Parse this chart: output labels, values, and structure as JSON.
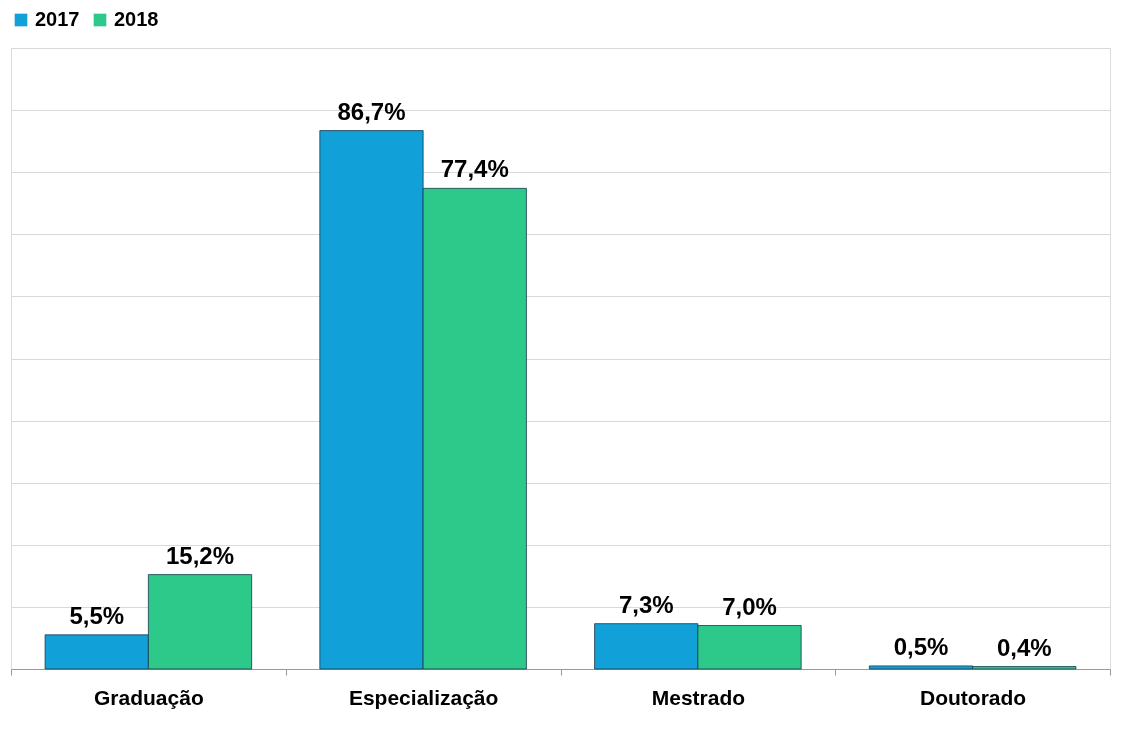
{
  "chart_data": {
    "type": "bar",
    "categories": [
      "Graduação",
      "Especialização",
      "Mestrado",
      "Doutorado"
    ],
    "series": [
      {
        "name": "2017",
        "color": "#12a0d8",
        "values": [
          5.5,
          86.7,
          7.3,
          0.5
        ],
        "value_labels": [
          "5,5%",
          "86,7%",
          "7,3%",
          "0,5%"
        ]
      },
      {
        "name": "2018",
        "color": "#2cc98a",
        "values": [
          15.2,
          77.4,
          7.0,
          0.4
        ],
        "value_labels": [
          "15,2%",
          "77,4%",
          "7,0%",
          "0,4%"
        ]
      }
    ],
    "ylim": [
      0,
      100
    ],
    "yticks": [
      0,
      10,
      20,
      30,
      40,
      50,
      60,
      70,
      80,
      90,
      100
    ],
    "grid": "y",
    "tick_labels": "x",
    "legend": "top"
  }
}
